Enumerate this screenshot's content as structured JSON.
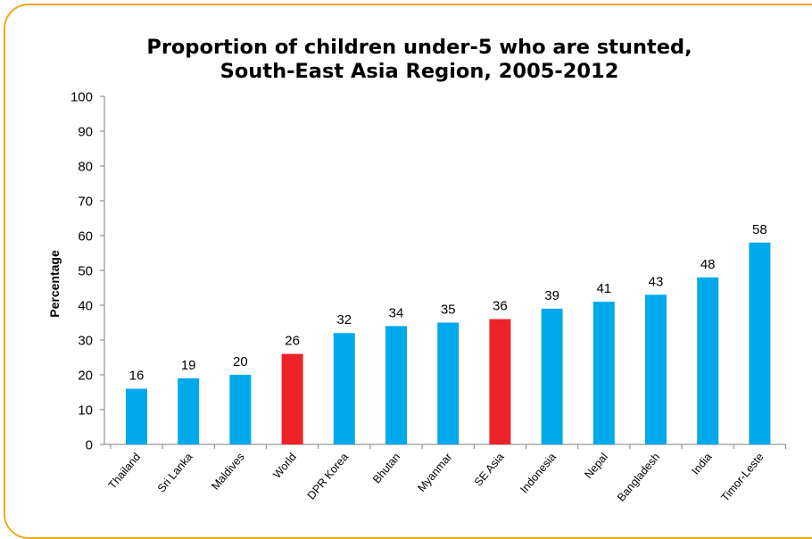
{
  "chart_data": {
    "type": "bar",
    "title": "Proportion of children under-5 who are stunted,",
    "subtitle": "South-East Asia Region, 2005-2012",
    "xlabel": "",
    "ylabel": "Percentage",
    "ylim": [
      0,
      100
    ],
    "yticks": [
      0,
      10,
      20,
      30,
      40,
      50,
      60,
      70,
      80,
      90,
      100
    ],
    "grid": false,
    "categories": [
      "Thailand",
      "Sri Lanka",
      "Maldives",
      "World",
      "DPR Korea",
      "Bhutan",
      "Myanmar",
      "SE Asia",
      "Indonesia",
      "Nepal",
      "Bangladesh",
      "India",
      "Timor-Leste"
    ],
    "values": [
      16,
      19,
      20,
      26,
      32,
      34,
      35,
      36,
      39,
      41,
      43,
      48,
      58
    ],
    "data_labels": [
      "16",
      "19",
      "20",
      "26",
      "32",
      "34",
      "35",
      "36",
      "39",
      "41",
      "43",
      "48",
      "58"
    ],
    "highlight": [
      "World",
      "SE Asia"
    ],
    "colors": {
      "default": "#00a9ec",
      "highlight": "#ee2229",
      "frame": "#f0a71e",
      "axis": "#7f7f7f"
    }
  }
}
